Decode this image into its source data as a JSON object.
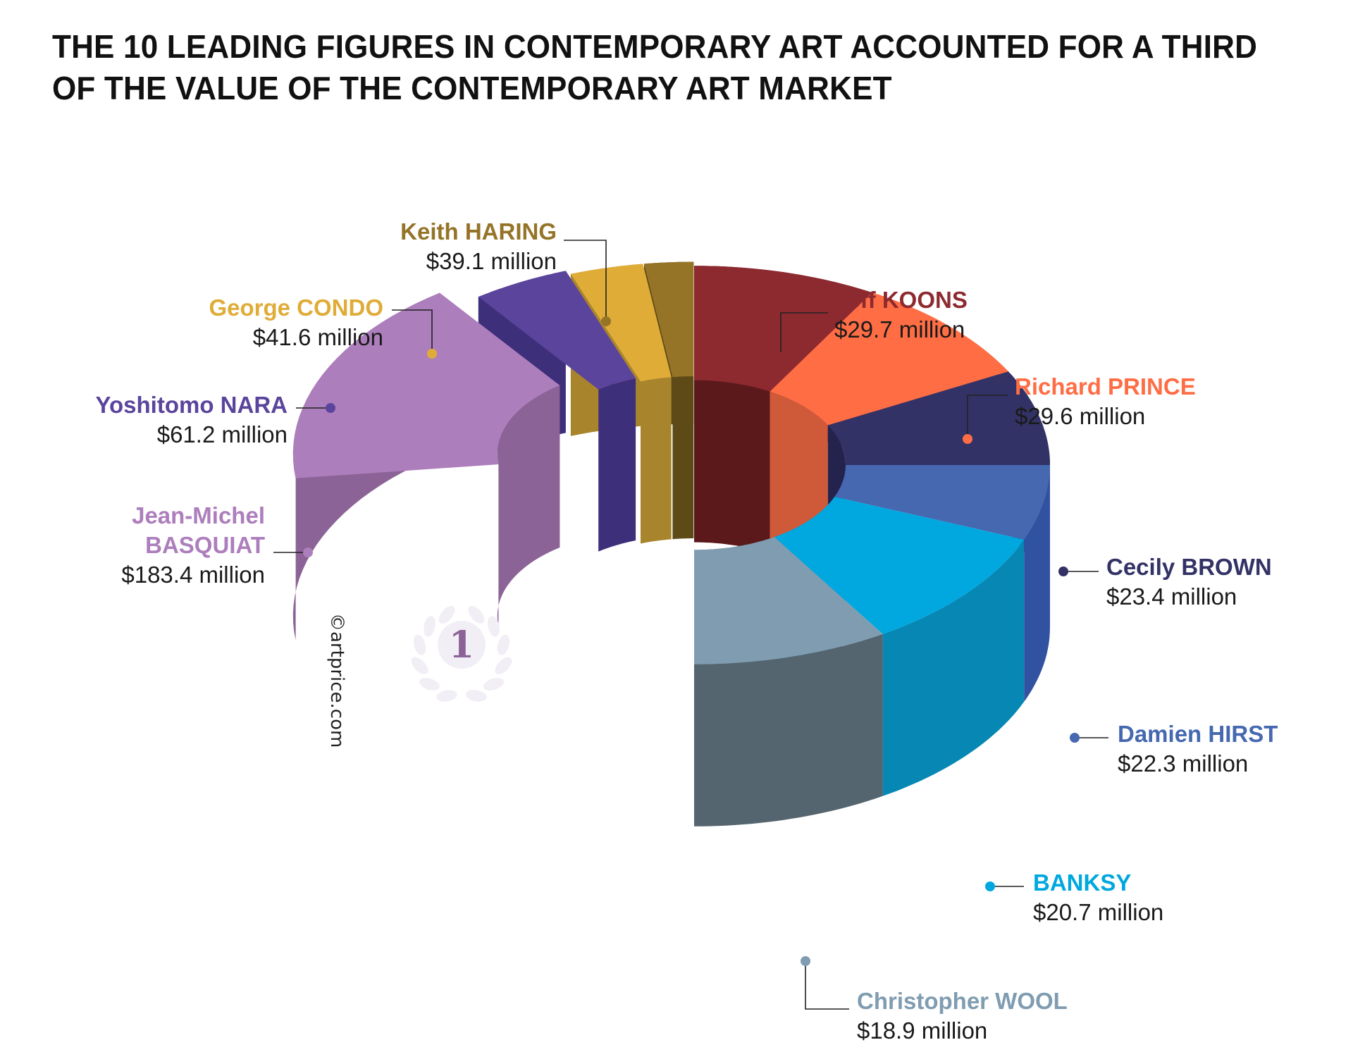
{
  "title": {
    "line1": "THE 10 LEADING FIGURES IN CONTEMPORARY ART ACCOUNTED FOR A THIRD",
    "line2": "OF THE VALUE OF THE CONTEMPORARY ART MARKET"
  },
  "credit": "©artprice.com",
  "badge_rank": "1",
  "chart_data": {
    "type": "pie",
    "title": "THE 10 LEADING FIGURES IN CONTEMPORARY ART ACCOUNTED FOR A THIRD OF THE VALUE OF THE CONTEMPORARY ART MARKET",
    "unit": "million",
    "categories": [
      "Jean-Michel BASQUIAT",
      "Yoshitomo NARA",
      "George CONDO",
      "Keith HARING",
      "Jeff KOONS",
      "Richard PRINCE",
      "Cecily BROWN",
      "Damien HIRST",
      "BANKSY",
      "Christopher WOOL"
    ],
    "values": [
      183.4,
      61.2,
      41.6,
      39.1,
      29.7,
      29.6,
      23.4,
      22.3,
      20.7,
      18.9
    ],
    "value_labels": [
      "$183.4 million",
      "$61.2 million",
      "$41.6 million",
      "$39.1 million",
      "$29.7 million",
      "$29.6 million",
      "$23.4 million",
      "$22.3 million",
      "$20.7 million",
      "$18.9 million"
    ],
    "name_lines": [
      [
        "Jean-Michel",
        "BASQUIAT"
      ],
      [
        "Yoshitomo NARA"
      ],
      [
        "George CONDO"
      ],
      [
        "Keith HARING"
      ],
      [
        "Jeff KOONS"
      ],
      [
        "Richard PRINCE"
      ],
      [
        "Cecily BROWN"
      ],
      [
        "Damien HIRST"
      ],
      [
        "BANKSY"
      ],
      [
        "Christopher WOOL"
      ]
    ],
    "colors": [
      "#ad7ebc",
      "#5b449c",
      "#e0ac38",
      "#957428",
      "#8d2a30",
      "#ff6d45",
      "#333266",
      "#4568b0",
      "#00a8df",
      "#7f9cb1"
    ],
    "side_colors": [
      "#8b6396",
      "#3e2f7a",
      "#a8852c",
      "#5e4a17",
      "#5b191c",
      "#cf5a39",
      "#24234e",
      "#3052a0",
      "#0787b4",
      "#55656f"
    ],
    "label_colors": [
      "#ad7ebc",
      "#5b449c",
      "#e0ac38",
      "#957428",
      "#8d2a30",
      "#ff6d45",
      "#333266",
      "#4568b0",
      "#00a8df",
      "#7f9cb1"
    ],
    "style": "3d-exploded-donut",
    "legend": "none"
  }
}
